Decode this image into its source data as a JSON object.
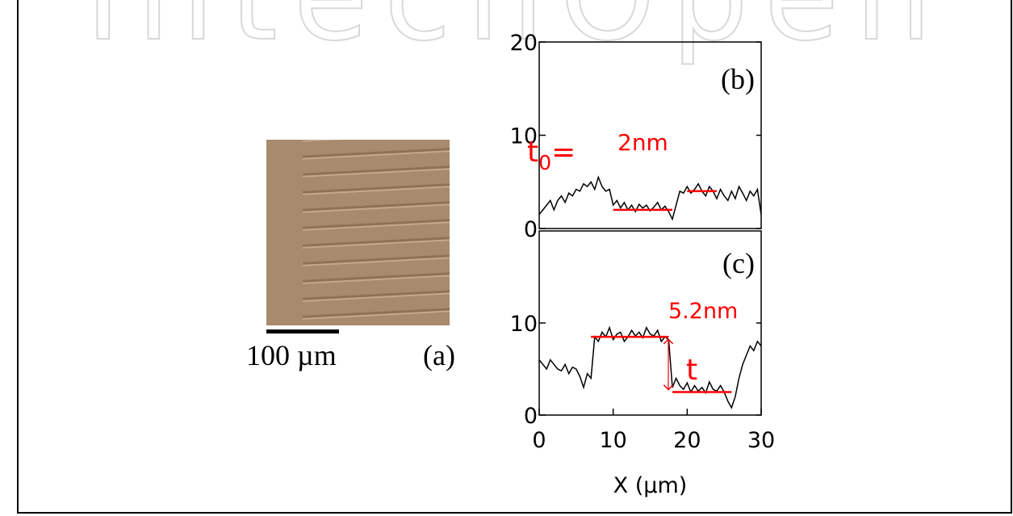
{
  "watermark": "IntechOpen",
  "panel_a": {
    "scale_bar": "100 µm",
    "label": "(a)"
  },
  "chart_data": [
    {
      "type": "line",
      "label": "(b)",
      "color": "#000000",
      "x": [
        0,
        0.5,
        1,
        1.5,
        2,
        2.5,
        3,
        3.5,
        4,
        4.5,
        5,
        5.5,
        6,
        6.5,
        7,
        7.5,
        8,
        8.5,
        9,
        9.5,
        10,
        10.5,
        11,
        11.5,
        12,
        12.5,
        13,
        13.5,
        14,
        14.5,
        15,
        15.5,
        16,
        16.5,
        17,
        17.5,
        18,
        18.5,
        19,
        19.5,
        20,
        20.5,
        21,
        21.5,
        22,
        22.5,
        23,
        23.5,
        24,
        24.5,
        25,
        25.5,
        26,
        26.5,
        27,
        27.5,
        28,
        28.5,
        29,
        29.5,
        30
      ],
      "values": [
        1.5,
        2,
        2.5,
        3,
        2,
        3,
        3.5,
        2.8,
        3.8,
        3.5,
        4.2,
        4,
        4.8,
        4.5,
        5,
        4.2,
        5.5,
        4.5,
        4,
        4.2,
        2.5,
        3,
        2.2,
        2.8,
        2,
        2.5,
        1.8,
        2.6,
        2.2,
        2.5,
        1.9,
        2.3,
        2.8,
        2,
        2.4,
        1.8,
        1,
        2.5,
        4,
        3.8,
        4.5,
        3.8,
        4.2,
        4.8,
        4,
        3.5,
        4.5,
        4,
        3.2,
        4.2,
        3.5,
        3,
        4,
        3.2,
        4.5,
        3.8,
        3,
        4,
        3.5,
        4.2,
        1.5
      ],
      "xlim": [
        0,
        30
      ],
      "ylim": [
        0,
        20
      ],
      "yticks": [
        0,
        10,
        20
      ],
      "level_color": "#ff0000",
      "levels": [
        {
          "x": [
            10,
            18
          ],
          "y": 2
        },
        {
          "x": [
            20,
            24
          ],
          "y": 4
        }
      ],
      "annotations": [
        {
          "text": "t",
          "subscript": "0",
          "suffix": "="
        },
        {
          "text": "2nm"
        }
      ]
    },
    {
      "type": "line",
      "label": "(c)",
      "color": "#000000",
      "x": [
        0,
        0.5,
        1,
        1.5,
        2,
        2.5,
        3,
        3.5,
        4,
        4.5,
        5,
        5.5,
        6,
        6.5,
        7,
        7.5,
        8,
        8.5,
        9,
        9.5,
        10,
        10.5,
        11,
        11.5,
        12,
        12.5,
        13,
        13.5,
        14,
        14.5,
        15,
        15.5,
        16,
        16.5,
        17,
        17.5,
        18,
        18.5,
        19,
        19.5,
        20,
        20.5,
        21,
        21.5,
        22,
        22.5,
        23,
        23.5,
        24,
        24.5,
        25,
        25.5,
        26,
        26.5,
        27,
        27.5,
        28,
        28.5,
        29,
        29.5,
        30
      ],
      "values": [
        6,
        5.5,
        5,
        6,
        5.5,
        5,
        4.8,
        5.5,
        4.5,
        5.2,
        5,
        4.2,
        3,
        4.5,
        4,
        8.5,
        8,
        9,
        8.5,
        9.5,
        8.2,
        8.8,
        9,
        8,
        8.5,
        9.2,
        8.6,
        9,
        8.4,
        9.5,
        8.8,
        8.6,
        9.2,
        8,
        8.5,
        8.2,
        3,
        4,
        3.2,
        2.8,
        3.5,
        2.5,
        3.2,
        2.6,
        3,
        2.4,
        3.6,
        2.8,
        2.6,
        3.2,
        2.5,
        1.5,
        0.8,
        2,
        4,
        5.5,
        6.5,
        7.5,
        7,
        8,
        7.5
      ],
      "xlim": [
        0,
        30
      ],
      "ylim": [
        0,
        20
      ],
      "yticks": [
        0,
        10
      ],
      "xticks": [
        0,
        10,
        20,
        30
      ],
      "xlabel": "X (µm)",
      "level_color": "#ff0000",
      "levels": [
        {
          "x": [
            7,
            17.5
          ],
          "y": 8.5
        },
        {
          "x": [
            18,
            26
          ],
          "y": 2.5
        }
      ],
      "annotations": [
        {
          "text": "5.2nm"
        },
        {
          "text": "t"
        }
      ]
    }
  ]
}
